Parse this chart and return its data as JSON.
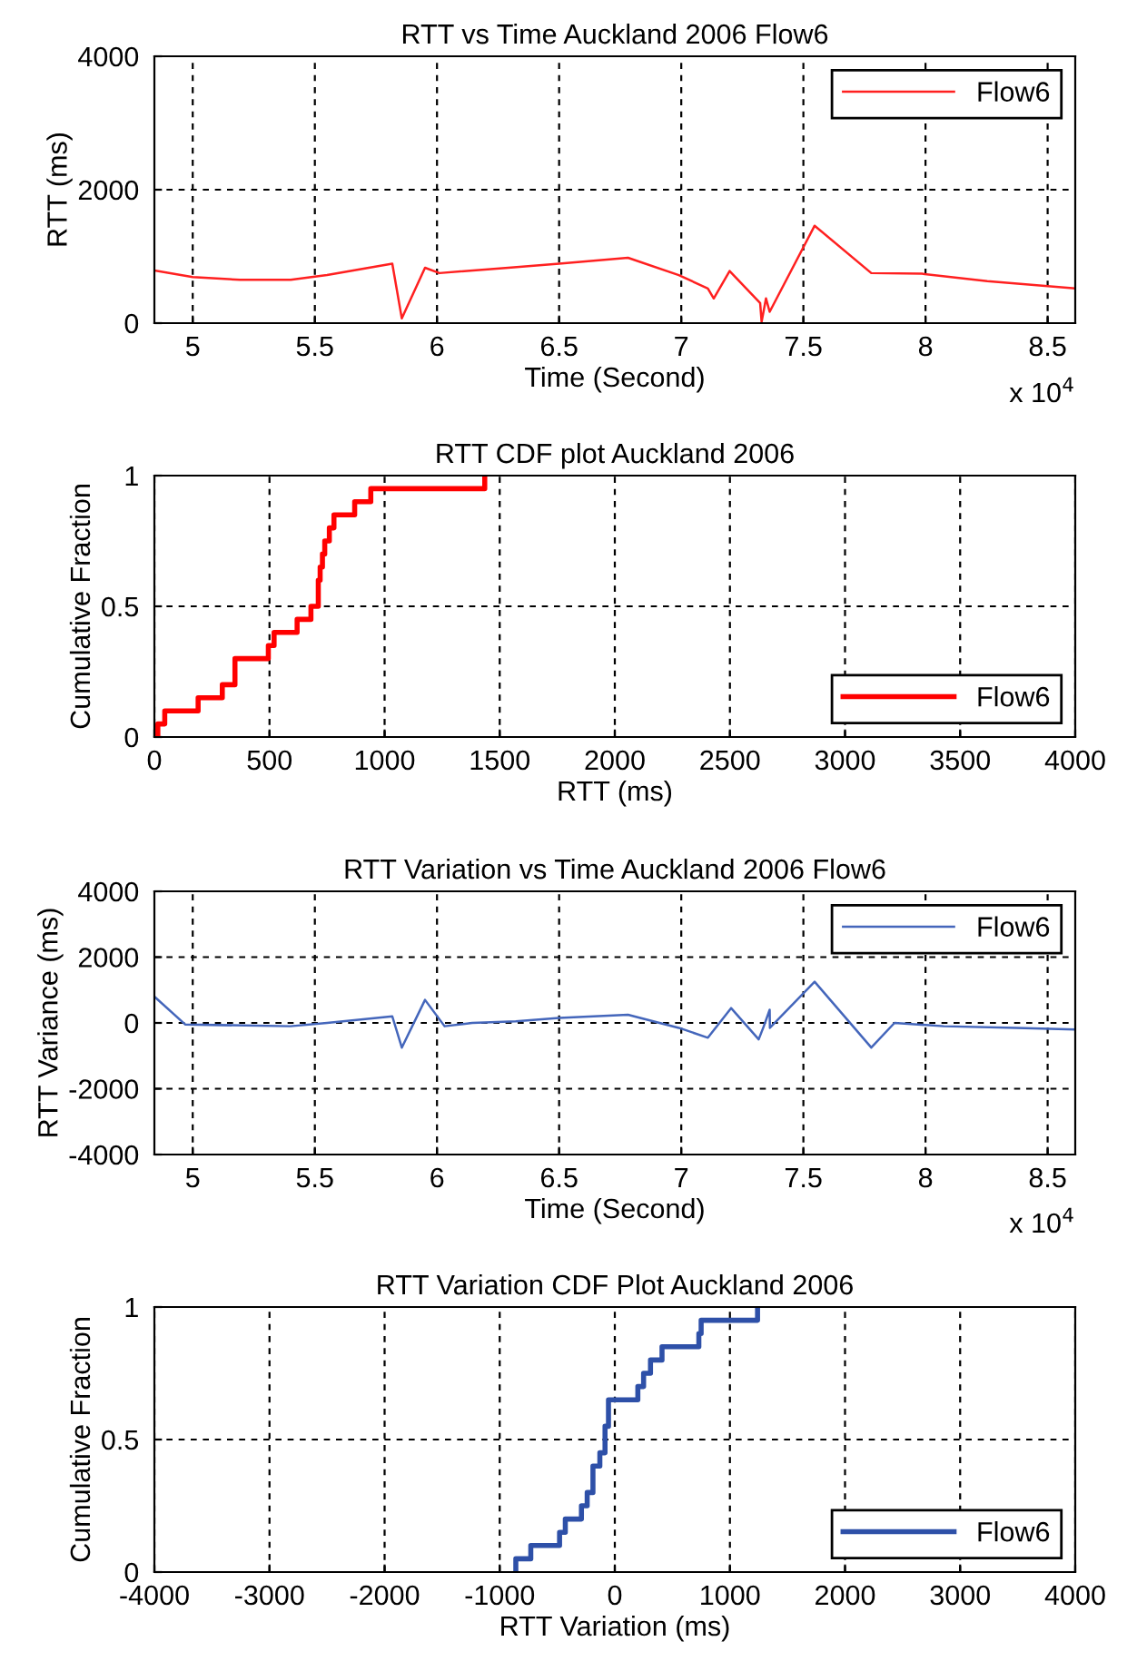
{
  "chart_data": [
    {
      "type": "line",
      "title": "RTT vs Time Auckland 2006 Flow6",
      "xlabel": "Time (Second)",
      "ylabel": "RTT (ms)",
      "annotations": [
        "x 10$^{4}$"
      ],
      "xlim": [
        4.843,
        8.613
      ],
      "xticks": [
        5,
        5.5,
        6,
        6.5,
        7,
        7.5,
        8,
        8.5
      ],
      "ylim": [
        0,
        4000
      ],
      "yticks": [
        0,
        2000,
        4000
      ],
      "grid": true,
      "legend": "top right",
      "series": [
        {
          "name": "Flow6",
          "color": "#ff2020",
          "x": [
            4.843,
            5.0,
            5.193,
            5.401,
            5.55,
            5.817,
            5.856,
            5.951,
            6.01,
            6.292,
            6.5,
            6.782,
            6.99,
            7.109,
            7.133,
            7.198,
            7.323,
            7.329,
            7.347,
            7.362,
            7.546,
            7.778,
            7.986,
            8.253,
            8.613
          ],
          "values": [
            790,
            690,
            650,
            650,
            720,
            890,
            70,
            830,
            750,
            830,
            890,
            980,
            720,
            520,
            370,
            780,
            300,
            20,
            370,
            170,
            1460,
            750,
            740,
            630,
            520
          ]
        }
      ]
    },
    {
      "type": "step",
      "title": "RTT CDF plot Auckland 2006",
      "xlabel": "RTT (ms)",
      "ylabel": "Cumulative Fraction",
      "xlim": [
        0,
        4000
      ],
      "xticks": [
        0,
        500,
        1000,
        1500,
        2000,
        2500,
        3000,
        3500,
        4000
      ],
      "ylim": [
        0,
        1
      ],
      "yticks": [
        0,
        0.5,
        1
      ],
      "grid": true,
      "legend": "bottom right",
      "series": [
        {
          "name": "Flow6",
          "color": "#ff0000",
          "x": [
            15,
            15,
            45,
            190,
            295,
            350,
            495,
            520,
            620,
            680,
            712,
            720,
            730,
            740,
            760,
            780,
            870,
            940,
            1435
          ],
          "values": [
            0,
            0.05,
            0.1,
            0.15,
            0.2,
            0.3,
            0.35,
            0.4,
            0.45,
            0.5,
            0.6,
            0.65,
            0.7,
            0.75,
            0.8,
            0.85,
            0.9,
            0.95,
            1
          ]
        }
      ]
    },
    {
      "type": "line",
      "title": "RTT Variation vs Time Auckland 2006 Flow6",
      "xlabel": "Time (Second)",
      "ylabel": "RTT Variance (ms)",
      "annotations": [
        "x 10$^{4}$"
      ],
      "xlim": [
        4.843,
        8.613
      ],
      "xticks": [
        5,
        5.5,
        6,
        6.5,
        7,
        7.5,
        8,
        8.5
      ],
      "ylim": [
        -4000,
        4000
      ],
      "yticks": [
        -4000,
        -2000,
        0,
        2000,
        4000
      ],
      "grid": true,
      "legend": "top right",
      "series": [
        {
          "name": "Flow6",
          "color": "#4466bb",
          "x": [
            4.843,
            4.97,
            5.4,
            5.55,
            5.817,
            5.856,
            5.951,
            6.031,
            6.144,
            6.322,
            6.5,
            6.782,
            6.99,
            7.109,
            7.204,
            7.317,
            7.338,
            7.362,
            7.363,
            7.546,
            7.778,
            7.873,
            8.075,
            8.372,
            8.613
          ],
          "values": [
            800,
            -50,
            -100,
            0,
            200,
            -750,
            700,
            -100,
            0,
            50,
            150,
            250,
            -150,
            -450,
            450,
            -500,
            -100,
            400,
            -150,
            1250,
            -750,
            0,
            -100,
            -150,
            -200
          ]
        }
      ]
    },
    {
      "type": "step",
      "title": "RTT Variation CDF Plot Auckland 2006",
      "xlabel": "RTT Variation (ms)",
      "ylabel": "Cumulative Fraction",
      "xlim": [
        -4000,
        4000
      ],
      "xticks": [
        -4000,
        -3000,
        -2000,
        -1000,
        0,
        1000,
        2000,
        3000,
        4000
      ],
      "ylim": [
        0,
        1
      ],
      "yticks": [
        0,
        0.5,
        1
      ],
      "grid": true,
      "legend": "bottom right",
      "series": [
        {
          "name": "Flow6",
          "color": "#2e50a8",
          "x": [
            -860,
            -860,
            -730,
            -480,
            -430,
            -290,
            -240,
            -190,
            -130,
            -85,
            -55,
            200,
            250,
            310,
            410,
            730,
            750,
            1240
          ],
          "values": [
            0,
            0.05,
            0.1,
            0.15,
            0.2,
            0.25,
            0.3,
            0.4,
            0.45,
            0.55,
            0.65,
            0.7,
            0.75,
            0.8,
            0.85,
            0.9,
            0.95,
            1
          ]
        }
      ]
    }
  ]
}
